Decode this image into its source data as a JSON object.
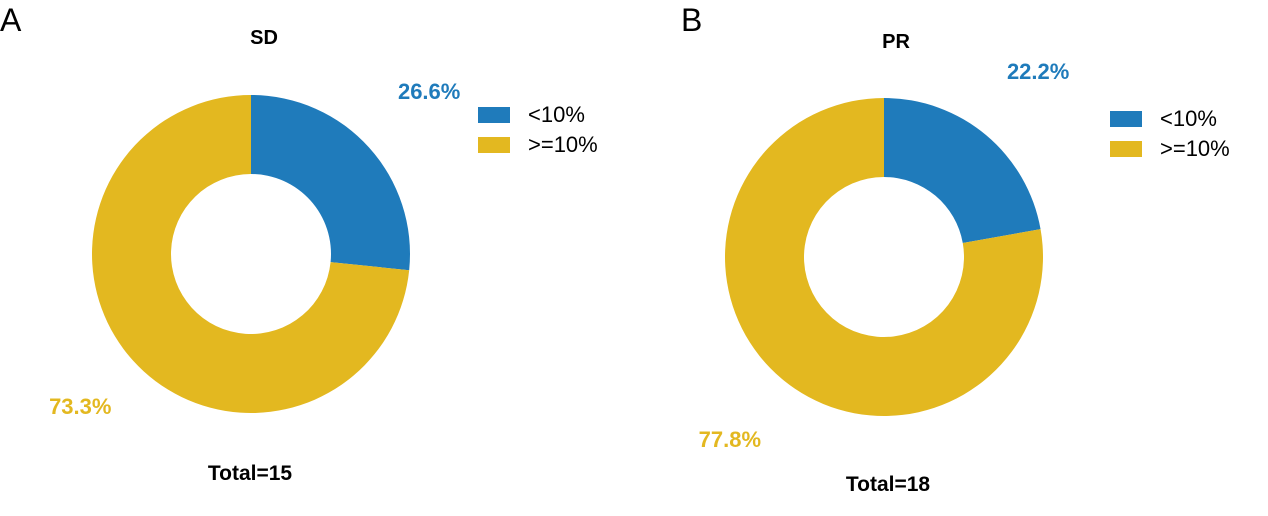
{
  "panels": [
    {
      "letter": "A",
      "title": "SD",
      "total": "Total=15",
      "legend": [
        {
          "label": "<10%",
          "color": "#1f7bbb"
        },
        {
          "label": ">=10%",
          "color": "#e3b820"
        }
      ]
    },
    {
      "letter": "B",
      "title": "PR",
      "total": "Total=18",
      "legend": [
        {
          "label": "<10%",
          "color": "#1f7bbb"
        },
        {
          "label": ">=10%",
          "color": "#e3b820"
        }
      ]
    }
  ],
  "chart_data": [
    {
      "type": "pie",
      "title": "SD",
      "categories": [
        "<10%",
        ">=10%"
      ],
      "values": [
        26.6,
        73.3
      ],
      "labels": [
        "26.6%",
        "73.3%"
      ],
      "colors": [
        "#1f7bbb",
        "#e3b820"
      ],
      "donut": true,
      "legend": "right"
    },
    {
      "type": "pie",
      "title": "PR",
      "categories": [
        "<10%",
        ">=10%"
      ],
      "values": [
        22.2,
        77.8
      ],
      "labels": [
        "22.2%",
        "77.8%"
      ],
      "colors": [
        "#1f7bbb",
        "#e3b820"
      ],
      "donut": true,
      "legend": "right"
    }
  ]
}
